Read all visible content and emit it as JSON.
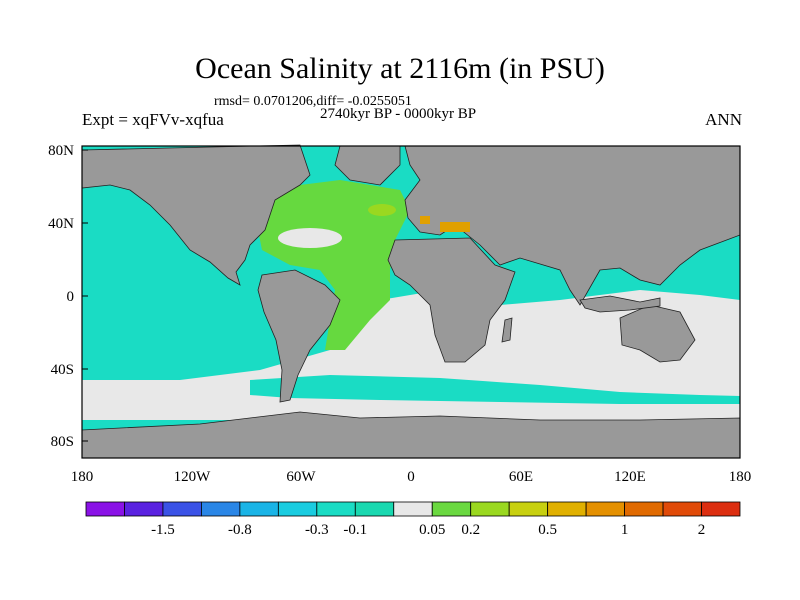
{
  "title": "Ocean Salinity at 2116m (in PSU)",
  "stats_line": "rmsd= 0.0701206,diff= -0.0255051",
  "period_line": "2740kyr BP - 0000kyr BP",
  "experiment_label": "Expt = xqFVv-xqfua",
  "season_label": "ANN",
  "axes": {
    "lat_ticks": [
      "80N",
      "40N",
      "0",
      "40S",
      "80S"
    ],
    "lon_ticks": [
      "180",
      "120W",
      "60W",
      "0",
      "60E",
      "120E",
      "180"
    ]
  },
  "colorbar": {
    "colors": [
      "#8a12e6",
      "#5a22e0",
      "#3a52e6",
      "#2a86e6",
      "#1ab4e6",
      "#1acce0",
      "#1adcc4",
      "#1ad8b0",
      "#e8e8e8",
      "#6ad840",
      "#9ad820",
      "#c8d010",
      "#e0b000",
      "#e49000",
      "#e06a00",
      "#e04a08",
      "#dc2e10"
    ],
    "labels": [
      "-1.5",
      "-0.8",
      "-0.3",
      "-0.1",
      "0.05",
      "0.2",
      "0.5",
      "1",
      "2"
    ]
  },
  "map_colors": {
    "land": "#999999",
    "teal": "#1adcc4",
    "neutral": "#e8e8e8",
    "green": "#66d93f",
    "light_green": "#9ad820",
    "orange": "#e0a000"
  }
}
